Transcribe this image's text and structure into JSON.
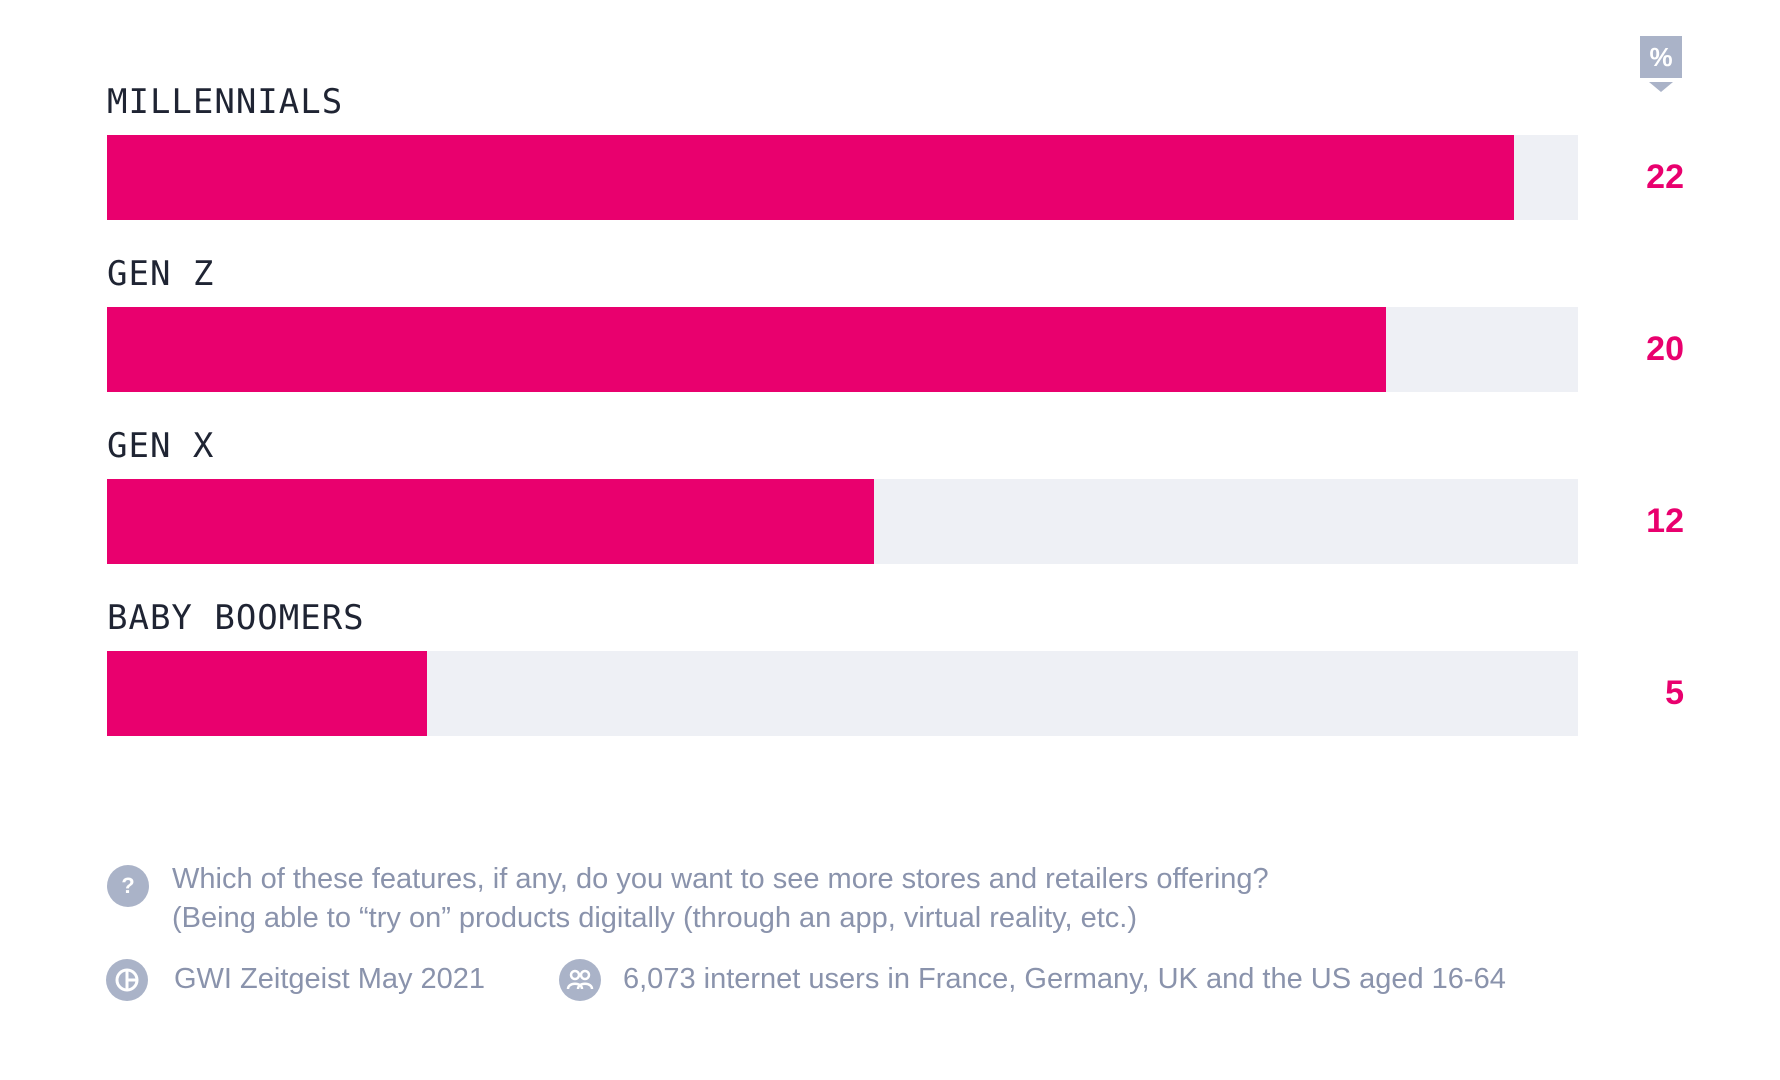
{
  "unit_badge": "%",
  "chart_data": {
    "type": "bar",
    "orientation": "horizontal",
    "categories": [
      "MILLENNIALS",
      "GEN Z",
      "GEN X",
      "BABY BOOMERS"
    ],
    "values": [
      22,
      20,
      12,
      5
    ],
    "xlim": [
      0,
      23
    ],
    "colors": {
      "bar": "#e9006e",
      "track": "#eef0f5",
      "value_label": "#e9006e"
    }
  },
  "footer": {
    "question": "Which of these features, if any, do you want to see more stores and retailers offering?",
    "answer": "(Being able to “try on” products digitally (through an app, virtual reality, etc.)",
    "source": "GWI Zeitgeist May 2021",
    "sample": "6,073 internet users in France, Germany, UK and the US aged 16-64",
    "icons": [
      "question-icon",
      "source-chart-icon",
      "people-icon"
    ]
  }
}
